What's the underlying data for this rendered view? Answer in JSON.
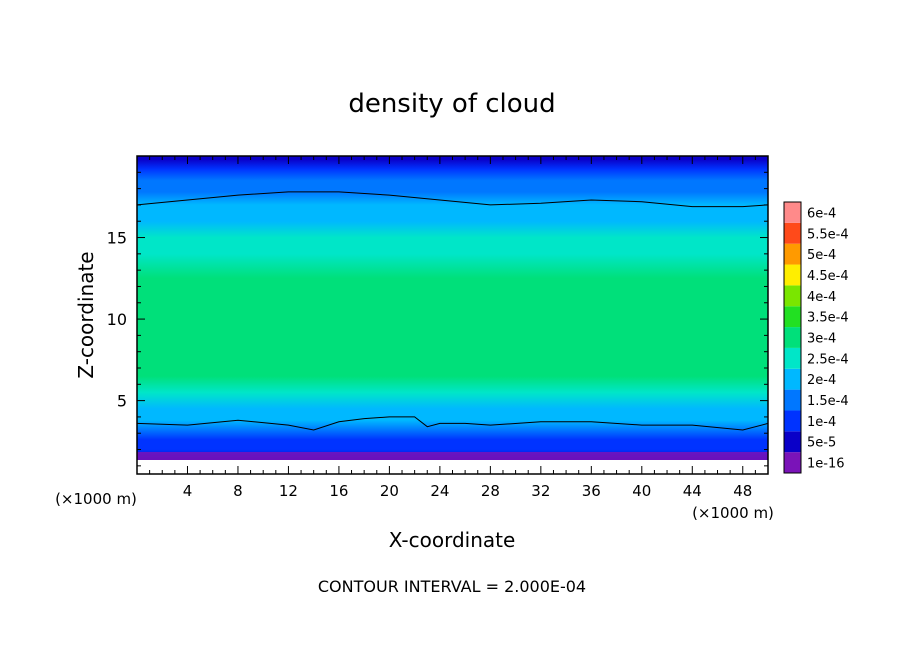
{
  "chart_data": {
    "type": "heatmap",
    "title": "density of cloud",
    "xlabel": "X-coordinate",
    "ylabel": "Z-coordinate",
    "x_unit_left": "(×1000 m)",
    "x_unit_right": "(×1000 m)",
    "xlim": [
      0,
      50
    ],
    "ylim": [
      0.5,
      20
    ],
    "x_ticks": [
      4,
      8,
      12,
      16,
      20,
      24,
      28,
      32,
      36,
      40,
      44,
      48
    ],
    "y_ticks": [
      5,
      10,
      15
    ],
    "colorbar": {
      "levels": [
        "1e-16",
        "5e-5",
        "1e-4",
        "1.5e-4",
        "2e-4",
        "2.5e-4",
        "3e-4",
        "3.5e-4",
        "4e-4",
        "4.5e-4",
        "5e-4",
        "5.5e-4",
        "6e-4"
      ],
      "colors": [
        "#7a13b8",
        "#0a00c8",
        "#0033ff",
        "#0077ff",
        "#00b8ff",
        "#00e6c8",
        "#00e07a",
        "#22e022",
        "#7ae600",
        "#ffee00",
        "#ff9a00",
        "#ff4a1a",
        "#ff8a8a"
      ]
    },
    "profile": {
      "z": [
        0.6,
        1.0,
        1.4,
        2.0,
        2.6,
        3.2,
        3.8,
        4.5,
        5.5,
        6.5,
        8.0,
        9.5,
        11.0,
        12.5,
        14.0,
        15.0,
        16.0,
        17.0,
        17.8,
        18.5,
        19.2,
        19.8
      ],
      "density": [
        0.0,
        3e-05,
        6e-05,
        0.0001,
        0.00014,
        0.00018,
        0.0002,
        0.00024,
        0.00028,
        0.0003,
        0.00033,
        0.00034,
        0.00033,
        0.00031,
        0.00028,
        0.00026,
        0.00024,
        0.00021,
        0.00018,
        0.00015,
        0.0001,
        6e-05
      ]
    },
    "contour_lines": [
      {
        "x": [
          0,
          4,
          8,
          12,
          16,
          20,
          24,
          28,
          32,
          36,
          40,
          44,
          48,
          50
        ],
        "z": [
          17.0,
          17.3,
          17.6,
          17.8,
          17.8,
          17.6,
          17.3,
          17.0,
          17.1,
          17.3,
          17.2,
          16.9,
          16.9,
          17.0
        ]
      },
      {
        "x": [
          0,
          4,
          8,
          12,
          14,
          16,
          18,
          20,
          22,
          23,
          24,
          26,
          28,
          32,
          36,
          40,
          44,
          48,
          50
        ],
        "z": [
          3.6,
          3.5,
          3.8,
          3.5,
          3.2,
          3.7,
          3.9,
          4.0,
          4.0,
          3.4,
          3.6,
          3.6,
          3.5,
          3.7,
          3.7,
          3.5,
          3.5,
          3.2,
          3.6
        ]
      }
    ]
  },
  "footer": {
    "contour_interval": "CONTOUR INTERVAL = 2.000E-04"
  }
}
